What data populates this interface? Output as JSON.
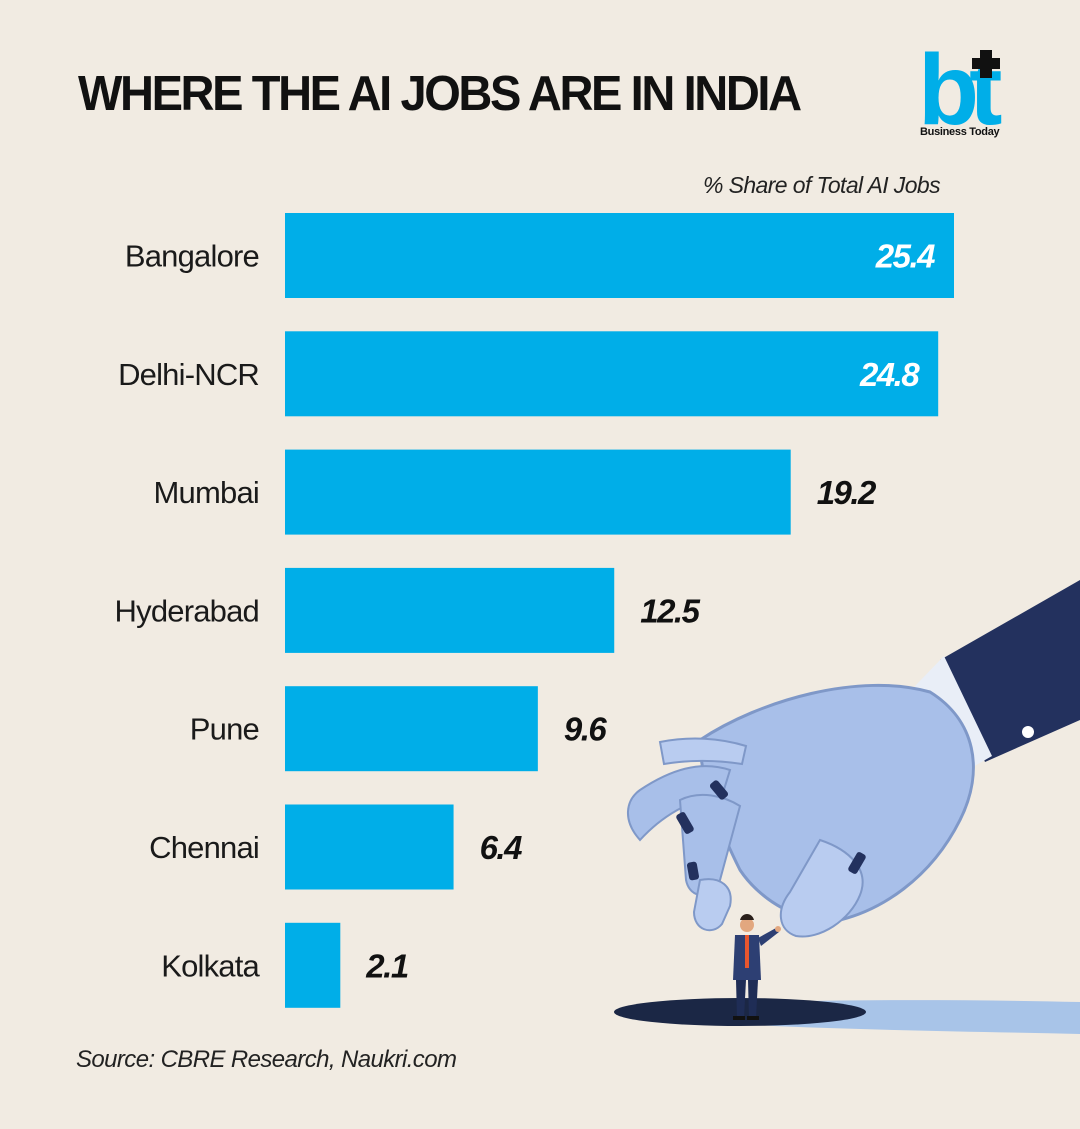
{
  "header": {
    "title": "WHERE THE AI JOBS ARE IN INDIA",
    "logo_text": "bt",
    "logo_name": "Business Today"
  },
  "chart_data": {
    "type": "bar",
    "orientation": "horizontal",
    "title": "WHERE THE AI JOBS ARE IN INDIA",
    "subtitle": "% Share of Total AI Jobs",
    "categories": [
      "Bangalore",
      "Delhi-NCR",
      "Mumbai",
      "Hyderabad",
      "Pune",
      "Chennai",
      "Kolkata"
    ],
    "values": [
      25.4,
      24.8,
      19.2,
      12.5,
      9.6,
      6.4,
      2.1
    ],
    "value_labels": [
      "25.4",
      "24.8",
      "19.2",
      "12.5",
      "9.6",
      "6.4",
      "2.1"
    ],
    "xlim": [
      0,
      25.4
    ],
    "grid": false,
    "legend": "none",
    "colors": {
      "bar": "#00aee8",
      "label_inside": "#ffffff",
      "label_outside": "#111111"
    }
  },
  "footer": {
    "source": "Source: CBRE Research, Naukri.com"
  },
  "colors": {
    "background": "#f1ebe2",
    "bar": "#00aee8",
    "logo": "#00aee8",
    "robot_hand": "#a8bfe9",
    "sleeve": "#23315e"
  }
}
